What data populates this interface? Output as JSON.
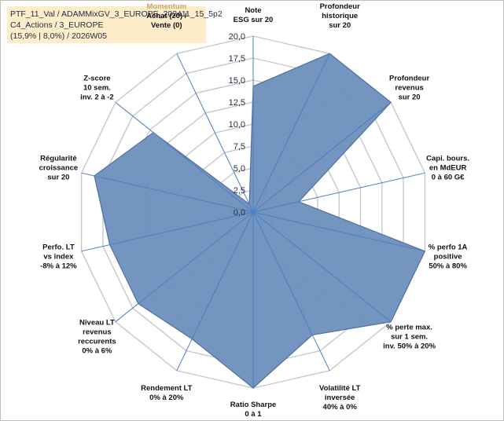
{
  "header": {
    "line1": "PTF_11_Val / ADAMMixGV_3_EUROPE_202411_15_5p2",
    "line2": "C4_Actions / 3_EUROPE",
    "line3": "(15,9% | 8,0%) / 2026W05"
  },
  "chart_data": {
    "type": "radar",
    "title": "",
    "rmax": 20,
    "ticks": [
      "0,0",
      "2,5",
      "5,0",
      "7,5",
      "10,0",
      "12,5",
      "15,0",
      "17,5",
      "20,0"
    ],
    "grid": true,
    "colors": {
      "fill": "#6d8fbc",
      "stroke": "#4f6fa0",
      "grid": "#c8c8c8",
      "spoke": "#4a7fc1",
      "faded_label": "#c7a46a"
    },
    "axes": [
      {
        "lines": [
          "Note",
          "ESG sur 20"
        ]
      },
      {
        "lines": [
          "Profondeur",
          "historique",
          "sur 20"
        ]
      },
      {
        "lines": [
          "Profondeur",
          "revenus",
          "sur 20"
        ]
      },
      {
        "lines": [
          "Capi. bours.",
          "en MdEUR",
          "0 à 60 G€"
        ]
      },
      {
        "lines": [
          "% perfo 1A",
          "positive",
          "50% à 80%"
        ]
      },
      {
        "lines": [
          "% perte max.",
          "sur 1 sem.",
          "inv. 50% à 20%"
        ]
      },
      {
        "lines": [
          "Volatilité LT",
          "inversée",
          "40% à 0%"
        ]
      },
      {
        "lines": [
          "Ratio Sharpe",
          "0 à 1"
        ]
      },
      {
        "lines": [
          "Rendement LT",
          "0% à 20%"
        ]
      },
      {
        "lines": [
          "Niveau LT",
          "revenus",
          "reccurents",
          "0% à 6%"
        ]
      },
      {
        "lines": [
          "Perfo. LT",
          "vs index",
          "-8% à 12%"
        ]
      },
      {
        "lines": [
          "Régularité",
          "croissance",
          "sur 20"
        ]
      },
      {
        "lines": [
          "Z-score",
          "10 sem.",
          "inv. 2 à -2"
        ]
      },
      {
        "lines": [
          "Momentum",
          "Achat (20) /",
          "Vente (0)"
        ],
        "faded_first": true
      }
    ],
    "series": [
      {
        "values": [
          14.3,
          20.0,
          20.0,
          5.3,
          20.0,
          20.0,
          15.5,
          20.0,
          16.0,
          16.7,
          16.7,
          18.5,
          14.5,
          1.0
        ]
      }
    ]
  }
}
